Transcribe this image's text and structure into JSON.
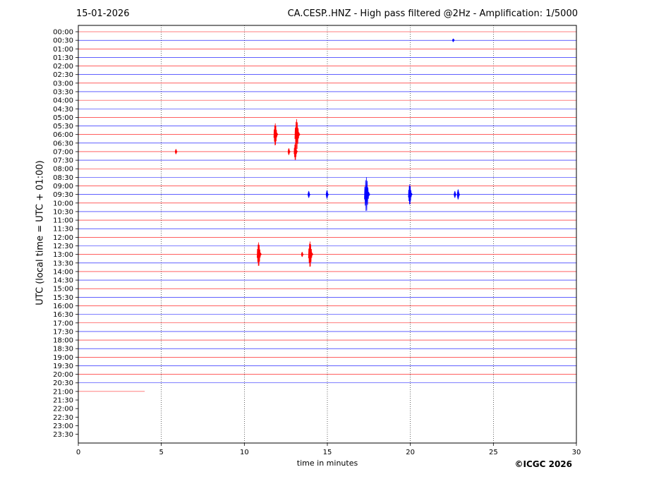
{
  "header": {
    "date": "15-01-2026",
    "title": "CA.CESP..HNZ - High pass filtered @2Hz - Amplification: 1/5000"
  },
  "footer": {
    "copyright": "©ICGC 2026"
  },
  "chart_data": {
    "type": "line",
    "title": "CA.CESP..HNZ - High pass filtered @2Hz - Amplification: 1/5000",
    "xlabel": "time in minutes",
    "ylabel": "UTC (local time = UTC + 01:00)",
    "xlim": [
      0,
      30
    ],
    "x_ticks": [
      0,
      5,
      10,
      15,
      20,
      25,
      30
    ],
    "y_tick_labels": [
      "00:00",
      "00:30",
      "01:00",
      "01:30",
      "02:00",
      "02:30",
      "03:00",
      "03:30",
      "04:00",
      "04:30",
      "05:00",
      "05:30",
      "06:00",
      "06:30",
      "07:00",
      "07:30",
      "08:00",
      "08:30",
      "09:00",
      "09:30",
      "10:00",
      "10:30",
      "11:00",
      "11:30",
      "12:00",
      "12:30",
      "13:00",
      "13:30",
      "14:00",
      "14:30",
      "15:00",
      "15:30",
      "16:00",
      "16:30",
      "17:00",
      "17:30",
      "18:00",
      "18:30",
      "19:00",
      "19:30",
      "20:00",
      "20:30",
      "21:00",
      "21:30",
      "22:00",
      "22:30",
      "23:00",
      "23:30"
    ],
    "trace_colors": [
      "#ff0000",
      "#0000ff"
    ],
    "grid": "vertical dotted at 5-minute ticks",
    "last_trace": {
      "label": "21:00",
      "end_minute": 4.0
    },
    "events": [
      {
        "row": "00:30",
        "minute": 22.6,
        "amplitude": 0.2
      },
      {
        "row": "06:00",
        "minute": 11.9,
        "amplitude": 1.3
      },
      {
        "row": "06:00",
        "minute": 13.2,
        "amplitude": 1.8
      },
      {
        "row": "07:00",
        "minute": 5.9,
        "amplitude": 0.3
      },
      {
        "row": "07:00",
        "minute": 12.7,
        "amplitude": 0.4
      },
      {
        "row": "07:00",
        "minute": 13.1,
        "amplitude": 1.0
      },
      {
        "row": "09:30",
        "minute": 13.9,
        "amplitude": 0.4
      },
      {
        "row": "09:30",
        "minute": 15.0,
        "amplitude": 0.5
      },
      {
        "row": "09:30",
        "minute": 17.4,
        "amplitude": 2.0
      },
      {
        "row": "09:30",
        "minute": 20.0,
        "amplitude": 1.2
      },
      {
        "row": "09:30",
        "minute": 22.7,
        "amplitude": 0.4
      },
      {
        "row": "09:30",
        "minute": 22.9,
        "amplitude": 0.6
      },
      {
        "row": "13:00",
        "minute": 10.9,
        "amplitude": 1.4
      },
      {
        "row": "13:00",
        "minute": 13.5,
        "amplitude": 0.3
      },
      {
        "row": "13:00",
        "minute": 14.0,
        "amplitude": 1.5
      }
    ]
  }
}
